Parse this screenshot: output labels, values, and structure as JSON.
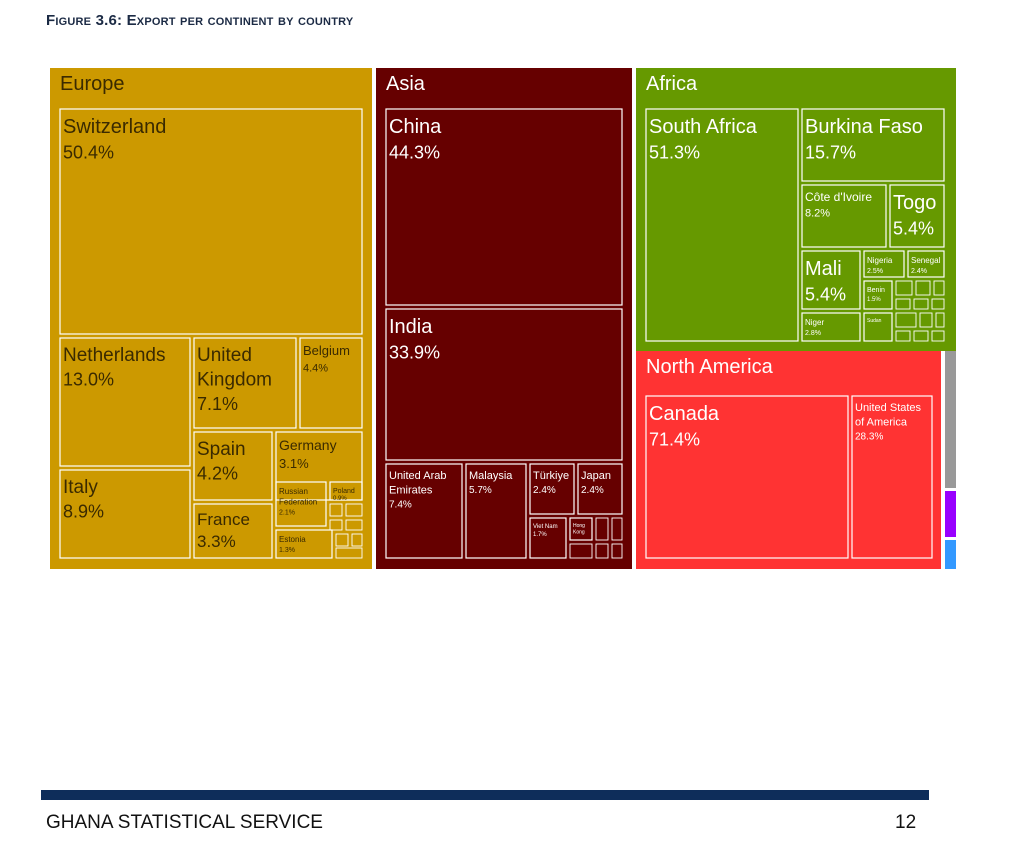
{
  "figure_title": "Figure 3.6: Export per continent by country",
  "footer": {
    "organization": "GHANA STATISTICAL SERVICE",
    "page_number": "12"
  },
  "chart_data": {
    "type": "treemap",
    "title": "Figure 3.6: Export per continent by country",
    "value_unit": "percent of continent exports",
    "continents": [
      {
        "name": "Europe",
        "color": "#cc9900",
        "text_color": "#3a2a00",
        "countries": [
          {
            "name": "Switzerland",
            "value": "50.4%"
          },
          {
            "name": "Netherlands",
            "value": "13.0%"
          },
          {
            "name": "United Kingdom",
            "value": "7.1%"
          },
          {
            "name": "Belgium",
            "value": "4.4%"
          },
          {
            "name": "Spain",
            "value": "4.2%"
          },
          {
            "name": "Germany",
            "value": "3.1%"
          },
          {
            "name": "Italy",
            "value": "8.9%"
          },
          {
            "name": "France",
            "value": "3.3%"
          },
          {
            "name": "Russian Federation",
            "value": "2.1%"
          },
          {
            "name": "Poland",
            "value": "0.9%"
          },
          {
            "name": "Estonia",
            "value": "1.3%"
          }
        ]
      },
      {
        "name": "Asia",
        "color": "#660000",
        "text_color": "#ffffff",
        "countries": [
          {
            "name": "China",
            "value": "44.3%"
          },
          {
            "name": "India",
            "value": "33.9%"
          },
          {
            "name": "United Arab Emirates",
            "value": "7.4%"
          },
          {
            "name": "Malaysia",
            "value": "5.7%"
          },
          {
            "name": "Türkiye",
            "value": "2.4%"
          },
          {
            "name": "Japan",
            "value": "2.4%"
          },
          {
            "name": "Viet Nam",
            "value": "1.7%"
          },
          {
            "name": "Hong Kong",
            "value": ""
          }
        ]
      },
      {
        "name": "Africa",
        "color": "#669900",
        "text_color": "#ffffff",
        "countries": [
          {
            "name": "South Africa",
            "value": "51.3%"
          },
          {
            "name": "Burkina Faso",
            "value": "15.7%"
          },
          {
            "name": "Côte d'Ivoire",
            "value": "8.2%"
          },
          {
            "name": "Togo",
            "value": "5.4%"
          },
          {
            "name": "Mali",
            "value": "5.4%"
          },
          {
            "name": "Nigeria",
            "value": "2.5%"
          },
          {
            "name": "Senegal",
            "value": "2.4%"
          },
          {
            "name": "Benin",
            "value": "1.5%"
          },
          {
            "name": "Niger",
            "value": "2.8%"
          },
          {
            "name": "Sudan",
            "value": ""
          }
        ]
      },
      {
        "name": "North America",
        "color": "#ff3333",
        "text_color": "#ffffff",
        "countries": [
          {
            "name": "Canada",
            "value": "71.4%"
          },
          {
            "name": "United States of America",
            "value": "28.3%"
          }
        ]
      },
      {
        "name": "",
        "color": "#999999",
        "countries": []
      },
      {
        "name": "",
        "color": "#9900ff",
        "countries": []
      },
      {
        "name": "",
        "color": "#3399ff",
        "countries": []
      }
    ]
  }
}
